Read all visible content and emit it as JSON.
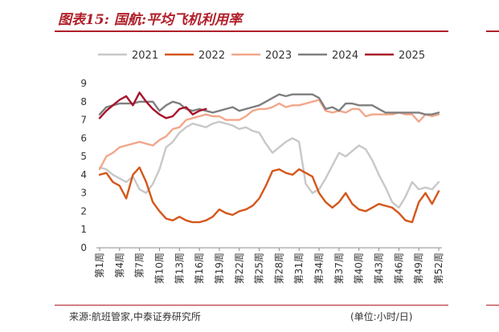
{
  "title": "图表15:  国航:平均飞机利用率",
  "source": "来源:航班管家,中泰证券研究所",
  "unit": "(单位:小时/日)",
  "chart_data": {
    "type": "line",
    "ylim": [
      0,
      9
    ],
    "yticks": [
      "0",
      "1",
      "2",
      "3",
      "4",
      "5",
      "6",
      "7",
      "8",
      "9"
    ],
    "x_tick_labels": [
      "第1周",
      "第4周",
      "第7周",
      "第10周",
      "第13周",
      "第16周",
      "第19周",
      "第22周",
      "第25周",
      "第28周",
      "第31周",
      "第34周",
      "第37周",
      "第40周",
      "第43周",
      "第46周",
      "第49周",
      "第52周"
    ],
    "legend_position": "top",
    "series": [
      {
        "name": "2021",
        "color": "#c8c8c8",
        "values": [
          4.4,
          4.3,
          4.0,
          3.8,
          3.6,
          3.9,
          3.2,
          3.0,
          3.5,
          4.3,
          5.5,
          5.8,
          6.3,
          6.6,
          6.8,
          6.7,
          6.6,
          6.8,
          6.9,
          6.8,
          6.7,
          6.5,
          6.6,
          6.4,
          6.3,
          5.7,
          5.2,
          5.5,
          5.8,
          6.0,
          5.8,
          3.5,
          3.0,
          3.2,
          3.8,
          4.5,
          5.2,
          5.0,
          5.3,
          5.6,
          5.4,
          4.8,
          4.0,
          3.3,
          2.5,
          2.2,
          2.8,
          3.6,
          3.2,
          3.3,
          3.2,
          3.6
        ]
      },
      {
        "name": "2022",
        "color": "#d4561a",
        "values": [
          4.0,
          4.1,
          3.6,
          3.4,
          2.7,
          4.0,
          4.4,
          3.6,
          2.5,
          2.0,
          1.6,
          1.5,
          1.7,
          1.5,
          1.4,
          1.4,
          1.5,
          1.7,
          2.1,
          1.9,
          1.8,
          2.0,
          2.1,
          2.3,
          2.7,
          3.4,
          4.2,
          4.3,
          4.1,
          4.0,
          4.3,
          4.1,
          3.9,
          3.0,
          2.5,
          2.2,
          2.5,
          3.0,
          2.4,
          2.1,
          2.0,
          2.2,
          2.4,
          2.3,
          2.2,
          1.9,
          1.5,
          1.4,
          2.5,
          3.0,
          2.4,
          3.1
        ]
      },
      {
        "name": "2023",
        "color": "#f2a78a",
        "values": [
          4.3,
          5.0,
          5.2,
          5.5,
          5.6,
          5.7,
          5.8,
          5.7,
          5.6,
          5.9,
          6.1,
          6.5,
          6.6,
          7.0,
          7.1,
          7.2,
          7.3,
          7.2,
          7.2,
          7.0,
          7.0,
          7.0,
          7.2,
          7.5,
          7.6,
          7.6,
          7.7,
          7.9,
          7.7,
          7.8,
          7.8,
          7.9,
          8.0,
          8.1,
          7.5,
          7.4,
          7.5,
          7.4,
          7.6,
          7.6,
          7.2,
          7.3,
          7.3,
          7.3,
          7.3,
          7.4,
          7.3,
          7.3,
          6.9,
          7.3,
          7.2,
          7.3
        ]
      },
      {
        "name": "2024",
        "color": "#7f7f7f",
        "values": [
          7.3,
          7.7,
          7.8,
          7.9,
          7.9,
          7.9,
          8.0,
          8.0,
          8.0,
          7.5,
          7.8,
          8.0,
          7.9,
          7.6,
          7.5,
          7.6,
          7.5,
          7.4,
          7.5,
          7.6,
          7.7,
          7.5,
          7.6,
          7.7,
          7.8,
          8.0,
          8.2,
          8.4,
          8.3,
          8.4,
          8.4,
          8.4,
          8.4,
          8.2,
          7.6,
          7.7,
          7.5,
          7.9,
          7.9,
          7.8,
          7.8,
          7.8,
          7.6,
          7.4,
          7.4,
          7.4,
          7.4,
          7.4,
          7.4,
          7.3,
          7.3,
          7.4
        ]
      },
      {
        "name": "2025",
        "color": "#a8122a",
        "values": [
          7.1,
          7.5,
          7.8,
          8.1,
          8.3,
          7.8,
          8.5,
          8.0,
          7.6,
          7.3,
          7.1,
          7.2,
          7.6,
          7.7,
          7.3,
          7.5,
          7.6
        ]
      }
    ]
  }
}
